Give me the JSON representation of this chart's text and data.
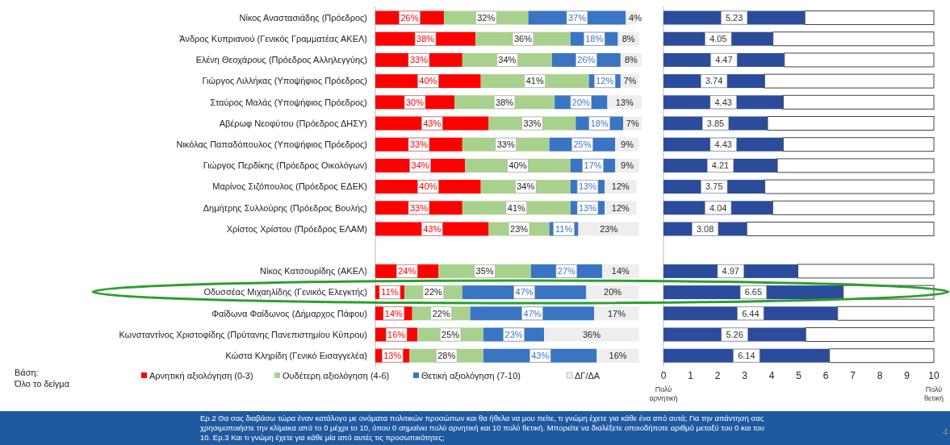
{
  "chart_data": [
    {
      "type": "bar",
      "orientation": "horizontal",
      "stacked": true,
      "legend": "bottom",
      "categories": [
        "Νίκος Αναστασιάδης (Πρόεδρος)",
        "Άνδρος Κυπριανού (Γενικός Γραμματέας ΑΚΕΛ)",
        "Ελένη Θεοχάρους (Πρόεδρος Αλληλεγγύης)",
        "Γιώργος Λιλλήκας (Υποψήφιος Πρόεδρος)",
        "Σταύρος Μαλάς (Υποψήφιος Πρόεδρος)",
        "Αβέρωφ Νεοφύτου (Πρόεδρος ΔΗΣΥ)",
        "Νικόλας Παπαδόπουλος (Υποψήφιος Πρόεδρος)",
        "Γιώργος Περδίκης (Πρόεδρος Οικολόγων)",
        "Μαρίνος Σιζόπουλος (Πρόεδρος ΕΔΕΚ)",
        "Δημήτρης Συλλούρης (Πρόεδρος Βουλής)",
        "Χρίστος Χρίστου (Πρόεδρος ΕΛΑΜ)",
        null,
        "Νίκος Κατσουρίδης (ΑΚΕΛ)",
        "Οδυσσέας Μιχαηλίδης (Γενικός Ελεγκτής)",
        "Φαίδωνα Φαίδωνος (Δήμαρχος Πάφου)",
        "Κωνσταντίνος Χριστοφίδης (Πρύτανης Πανεπιστημίου Κύπρου)",
        "Κώστα Κληρίδη (Γενικό Εισαγγελέα)"
      ],
      "series": [
        {
          "name": "Αρνητική αξιολόγηση (0-3)",
          "color": "#ff0000",
          "values": [
            26,
            38,
            33,
            40,
            30,
            43,
            33,
            34,
            40,
            33,
            43,
            null,
            24,
            11,
            14,
            16,
            13
          ],
          "value_labels": [
            "26%",
            "38%",
            "33%",
            "40%",
            "30%",
            "43%",
            "33%",
            "34%",
            "40%",
            "33%",
            "43%",
            null,
            "24%",
            "11%",
            "14%",
            "16%",
            "13%"
          ]
        },
        {
          "name": "Ουδέτερη αξιολόγηση (4-6)",
          "color": "#a9d18e",
          "values": [
            32,
            36,
            34,
            41,
            38,
            33,
            33,
            40,
            34,
            41,
            23,
            null,
            35,
            22,
            22,
            25,
            28
          ],
          "value_labels": [
            "32%",
            "36%",
            "34%",
            "41%",
            "38%",
            "33%",
            "33%",
            "40%",
            "34%",
            "41%",
            "23%",
            null,
            "35%",
            "22%",
            "22%",
            "25%",
            "28%"
          ]
        },
        {
          "name": "Θετική αξιολόγηση (7-10)",
          "color": "#3a75c4",
          "values": [
            37,
            18,
            26,
            12,
            20,
            18,
            25,
            17,
            13,
            13,
            11,
            null,
            27,
            47,
            47,
            23,
            43
          ],
          "value_labels": [
            "37%",
            "18%",
            "26%",
            "12%",
            "20%",
            "18%",
            "25%",
            "17%",
            "13%",
            "13%",
            "11%",
            null,
            "27%",
            "47%",
            "47%",
            "23%",
            "43%"
          ]
        },
        {
          "name": "ΔΓ/ΔΑ",
          "color": "#eeeeee",
          "values": [
            4,
            8,
            8,
            7,
            13,
            7,
            9,
            9,
            12,
            12,
            23,
            null,
            14,
            20,
            17,
            36,
            16
          ],
          "value_labels": [
            "4%",
            "8%",
            "8%",
            "7%",
            "13%",
            "7%",
            "9%",
            "9%",
            "12%",
            "12%",
            "23%",
            null,
            "14%",
            "20%",
            "17%",
            "36%",
            "16%"
          ]
        }
      ],
      "annotations": [
        "Βάση:\nΌλο το δείγμα",
        "Ερ.2 Θα σας διαβάσω τώρα έναν κατάλογο με ονόματα πολιτικών προσώπων και θα ήθελα να μου πείτε, τι γνώμη έχετε για κάθε ένα από αυτά; Για την απάντηση σας χρησιμοποιήστε την κλίμακα από το 0 μέχρι το 10, όπου 0 σημαίνει πολύ αρνητική και 10 πολύ θετική. Μπορείτε να διαλέξετε οποιοδήποτε αριθμό μεταξύ του 0 και του 10. Ερ.3 Και τι γνώμη έχετε για κάθε μία από αυτές τις προσωπικότητες;",
        "4"
      ]
    },
    {
      "type": "bar",
      "orientation": "horizontal",
      "stacked": true,
      "tick_labels": "x",
      "xlim": [
        0,
        10
      ],
      "xticks": [
        0,
        1,
        2,
        3,
        4,
        5,
        6,
        7,
        8,
        9,
        10
      ],
      "series": [
        {
          "color": "#2b4c9b",
          "values": [
            5.23,
            4.05,
            4.47,
            3.74,
            4.43,
            3.85,
            4.43,
            4.21,
            3.75,
            4.04,
            3.08,
            null,
            4.97,
            6.65,
            6.44,
            5.26,
            6.14
          ],
          "value_labels": [
            "5.23",
            "4.05",
            "4.47",
            "3.74",
            "4.43",
            "3.85",
            "4.43",
            "4.21",
            "3.75",
            "4.04",
            "3.08",
            null,
            "4.97",
            "6.65",
            "6.44",
            "5.26",
            "6.14"
          ]
        },
        {
          "color": "#ffffff",
          "values": [
            4.77,
            5.95,
            5.53,
            6.26,
            5.57,
            6.15,
            5.57,
            5.79,
            6.25,
            5.96,
            6.92,
            null,
            5.03,
            3.35,
            3.56,
            4.74,
            3.86
          ]
        }
      ],
      "annotations": [
        "Πολύ\nαρνητική",
        "Πολύ\nθετική"
      ]
    }
  ]
}
